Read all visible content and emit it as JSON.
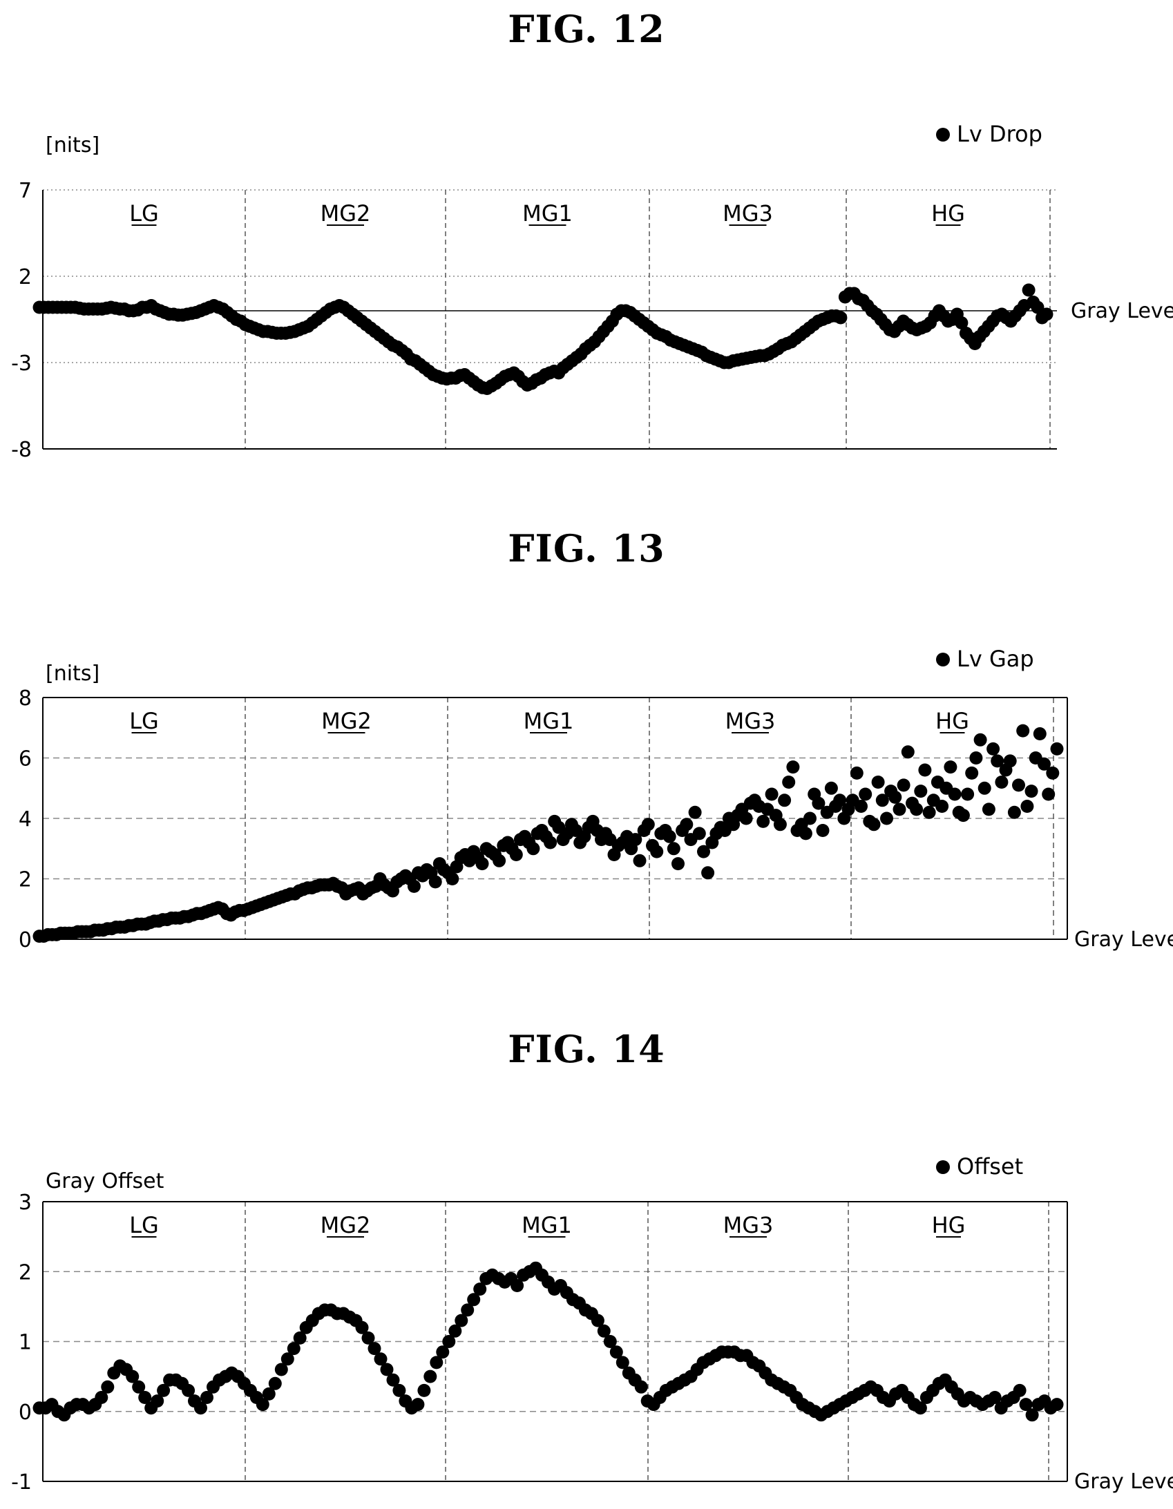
{
  "figures": [
    {
      "title": "FIG. 12"
    },
    {
      "title": "FIG. 13"
    },
    {
      "title": "FIG. 14"
    }
  ],
  "chart_data": [
    {
      "type": "scatter",
      "title": "FIG. 12",
      "ylabel": "[nits]",
      "xlabel": "Gray Level",
      "legend": [
        "Lv Drop"
      ],
      "legend_position": "top-right",
      "yticks": [
        7,
        2,
        -3,
        -8
      ],
      "ylim": [
        -8,
        7
      ],
      "x_axis_at": 0,
      "grid": true,
      "regions": [
        "LG",
        "MG2",
        "MG1",
        "MG3",
        "HG"
      ],
      "series": [
        {
          "name": "Lv Drop",
          "y": [
            0.2,
            0.2,
            0.2,
            0.2,
            0.2,
            0.2,
            0.2,
            0.2,
            0.2,
            0.15,
            0.1,
            0.1,
            0.1,
            0.1,
            0.1,
            0.15,
            0.2,
            0.15,
            0.1,
            0.1,
            0.0,
            0.0,
            0.05,
            0.2,
            0.2,
            0.3,
            0.1,
            0.0,
            -0.1,
            -0.2,
            -0.2,
            -0.25,
            -0.25,
            -0.2,
            -0.15,
            -0.1,
            0.0,
            0.1,
            0.2,
            0.3,
            0.2,
            0.1,
            -0.1,
            -0.3,
            -0.5,
            -0.6,
            -0.8,
            -0.9,
            -1.0,
            -1.1,
            -1.2,
            -1.2,
            -1.25,
            -1.3,
            -1.3,
            -1.3,
            -1.25,
            -1.2,
            -1.1,
            -1.0,
            -0.9,
            -0.7,
            -0.5,
            -0.3,
            -0.1,
            0.1,
            0.2,
            0.3,
            0.2,
            0.0,
            -0.2,
            -0.4,
            -0.6,
            -0.8,
            -1.0,
            -1.2,
            -1.4,
            -1.6,
            -1.8,
            -2.0,
            -2.1,
            -2.3,
            -2.5,
            -2.8,
            -2.9,
            -3.1,
            -3.3,
            -3.5,
            -3.7,
            -3.8,
            -3.9,
            -3.95,
            -3.9,
            -3.9,
            -3.75,
            -3.7,
            -3.9,
            -4.1,
            -4.3,
            -4.45,
            -4.5,
            -4.35,
            -4.2,
            -4.0,
            -3.8,
            -3.7,
            -3.6,
            -3.8,
            -4.1,
            -4.3,
            -4.2,
            -4.0,
            -3.9,
            -3.7,
            -3.6,
            -3.5,
            -3.6,
            -3.3,
            -3.1,
            -2.9,
            -2.7,
            -2.5,
            -2.2,
            -2.0,
            -1.8,
            -1.5,
            -1.2,
            -0.9,
            -0.6,
            -0.2,
            0.0,
            0.0,
            -0.1,
            -0.3,
            -0.5,
            -0.7,
            -0.9,
            -1.1,
            -1.3,
            -1.4,
            -1.5,
            -1.7,
            -1.8,
            -1.9,
            -2.0,
            -2.1,
            -2.2,
            -2.3,
            -2.4,
            -2.6,
            -2.7,
            -2.8,
            -2.9,
            -3.0,
            -3.0,
            -2.9,
            -2.85,
            -2.8,
            -2.75,
            -2.7,
            -2.65,
            -2.6,
            -2.6,
            -2.5,
            -2.35,
            -2.2,
            -2.0,
            -1.9,
            -1.8,
            -1.6,
            -1.4,
            -1.2,
            -1.0,
            -0.8,
            -0.6,
            -0.5,
            -0.4,
            -0.3,
            -0.3,
            -0.4,
            0.8,
            1.0,
            1.0,
            0.7,
            0.6,
            0.3,
            0.0,
            -0.2,
            -0.5,
            -0.8,
            -1.1,
            -1.2,
            -0.9,
            -0.6,
            -0.8,
            -1.0,
            -1.1,
            -1.0,
            -0.9,
            -0.7,
            -0.3,
            0.0,
            -0.3,
            -0.6,
            -0.5,
            -0.2,
            -0.7,
            -1.3,
            -1.6,
            -1.9,
            -1.5,
            -1.2,
            -0.9,
            -0.6,
            -0.3,
            -0.2,
            -0.4,
            -0.6,
            -0.3,
            0.0,
            0.3,
            1.2,
            0.5,
            0.2,
            -0.4,
            -0.2
          ]
        }
      ]
    },
    {
      "type": "scatter",
      "title": "FIG. 13",
      "ylabel": "[nits]",
      "xlabel": "Gray Level",
      "legend": [
        "Lv Gap"
      ],
      "legend_position": "top-right",
      "yticks": [
        8,
        6,
        4,
        2,
        0
      ],
      "ylim": [
        0,
        8
      ],
      "grid": true,
      "regions": [
        "LG",
        "MG2",
        "MG1",
        "MG3",
        "HG"
      ],
      "series": [
        {
          "name": "Lv Gap",
          "y": [
            0.1,
            0.1,
            0.15,
            0.15,
            0.15,
            0.2,
            0.2,
            0.2,
            0.2,
            0.25,
            0.25,
            0.25,
            0.25,
            0.3,
            0.3,
            0.3,
            0.35,
            0.35,
            0.4,
            0.4,
            0.4,
            0.45,
            0.45,
            0.5,
            0.5,
            0.5,
            0.55,
            0.6,
            0.6,
            0.65,
            0.65,
            0.7,
            0.7,
            0.7,
            0.75,
            0.75,
            0.8,
            0.85,
            0.85,
            0.9,
            0.95,
            1.0,
            1.05,
            1.0,
            0.85,
            0.8,
            0.9,
            0.95,
            0.95,
            1.0,
            1.05,
            1.1,
            1.15,
            1.2,
            1.25,
            1.3,
            1.35,
            1.4,
            1.45,
            1.5,
            1.5,
            1.6,
            1.65,
            1.7,
            1.7,
            1.75,
            1.8,
            1.8,
            1.8,
            1.85,
            1.75,
            1.7,
            1.5,
            1.6,
            1.65,
            1.7,
            1.5,
            1.6,
            1.7,
            1.75,
            2.0,
            1.8,
            1.7,
            1.6,
            1.9,
            2.0,
            2.1,
            2.0,
            1.75,
            2.2,
            2.1,
            2.3,
            2.2,
            1.9,
            2.5,
            2.3,
            2.2,
            2.0,
            2.4,
            2.7,
            2.8,
            2.6,
            2.9,
            2.7,
            2.5,
            3.0,
            2.9,
            2.8,
            2.6,
            3.1,
            3.2,
            3.0,
            2.8,
            3.3,
            3.4,
            3.2,
            3.0,
            3.5,
            3.6,
            3.4,
            3.2,
            3.9,
            3.7,
            3.3,
            3.5,
            3.8,
            3.6,
            3.2,
            3.4,
            3.7,
            3.9,
            3.6,
            3.3,
            3.5,
            3.3,
            2.8,
            3.1,
            3.2,
            3.4,
            3.0,
            3.3,
            2.6,
            3.6,
            3.8,
            3.1,
            2.9,
            3.5,
            3.6,
            3.4,
            3.0,
            2.5,
            3.6,
            3.8,
            3.3,
            4.2,
            3.5,
            2.9,
            2.2,
            3.2,
            3.5,
            3.7,
            3.6,
            4.0,
            3.8,
            4.1,
            4.3,
            4.0,
            4.5,
            4.6,
            4.4,
            3.9,
            4.3,
            4.8,
            4.1,
            3.8,
            4.6,
            5.2,
            5.7,
            3.6,
            3.8,
            3.5,
            4.0,
            4.8,
            4.5,
            3.6,
            4.2,
            5.0,
            4.4,
            4.6,
            4.0,
            4.3,
            4.6,
            5.5,
            4.4,
            4.8,
            3.9,
            3.8,
            5.2,
            4.6,
            4.0,
            4.9,
            4.7,
            4.3,
            5.1,
            6.2,
            4.5,
            4.3,
            4.9,
            5.6,
            4.2,
            4.6,
            5.2,
            4.4,
            5.0,
            5.7,
            4.8,
            4.2,
            4.1,
            4.8,
            5.5,
            6.0,
            6.6,
            5.0,
            4.3,
            6.3,
            5.9,
            5.2,
            5.6,
            5.9,
            4.2,
            5.1,
            6.9,
            4.4,
            4.9,
            6.0,
            6.8,
            5.8,
            4.8,
            5.5,
            6.3
          ]
        }
      ]
    },
    {
      "type": "scatter",
      "title": "FIG. 14",
      "ylabel": "Gray Offset",
      "xlabel": "Gray Level",
      "legend": [
        "Offset"
      ],
      "legend_position": "top-right",
      "yticks": [
        3,
        2,
        1,
        0,
        -1
      ],
      "ylim": [
        -1,
        3
      ],
      "grid": true,
      "regions": [
        "LG",
        "MG2",
        "MG1",
        "MG3",
        "HG"
      ],
      "series": [
        {
          "name": "Offset",
          "y": [
            0.05,
            0.05,
            0.1,
            0.0,
            -0.05,
            0.05,
            0.1,
            0.1,
            0.05,
            0.1,
            0.2,
            0.35,
            0.55,
            0.65,
            0.6,
            0.5,
            0.35,
            0.2,
            0.05,
            0.15,
            0.3,
            0.45,
            0.45,
            0.4,
            0.3,
            0.15,
            0.05,
            0.2,
            0.35,
            0.45,
            0.5,
            0.55,
            0.5,
            0.4,
            0.3,
            0.2,
            0.1,
            0.25,
            0.4,
            0.6,
            0.75,
            0.9,
            1.05,
            1.2,
            1.3,
            1.4,
            1.45,
            1.45,
            1.4,
            1.4,
            1.35,
            1.3,
            1.2,
            1.05,
            0.9,
            0.75,
            0.6,
            0.45,
            0.3,
            0.15,
            0.05,
            0.1,
            0.3,
            0.5,
            0.7,
            0.85,
            1.0,
            1.15,
            1.3,
            1.45,
            1.6,
            1.75,
            1.9,
            1.95,
            1.9,
            1.85,
            1.9,
            1.8,
            1.95,
            2.0,
            2.05,
            1.95,
            1.85,
            1.75,
            1.8,
            1.7,
            1.6,
            1.55,
            1.45,
            1.4,
            1.3,
            1.15,
            1.0,
            0.85,
            0.7,
            0.55,
            0.45,
            0.35,
            0.15,
            0.1,
            0.2,
            0.3,
            0.35,
            0.4,
            0.45,
            0.5,
            0.6,
            0.7,
            0.75,
            0.8,
            0.85,
            0.85,
            0.85,
            0.8,
            0.8,
            0.7,
            0.65,
            0.55,
            0.45,
            0.4,
            0.35,
            0.3,
            0.2,
            0.1,
            0.05,
            0.0,
            -0.05,
            0.0,
            0.05,
            0.1,
            0.15,
            0.2,
            0.25,
            0.3,
            0.35,
            0.3,
            0.2,
            0.15,
            0.25,
            0.3,
            0.2,
            0.1,
            0.05,
            0.2,
            0.3,
            0.4,
            0.45,
            0.35,
            0.25,
            0.15,
            0.2,
            0.15,
            0.1,
            0.15,
            0.2,
            0.05,
            0.15,
            0.2,
            0.3,
            0.1,
            -0.05,
            0.1,
            0.15,
            0.05,
            0.1
          ]
        }
      ]
    }
  ]
}
